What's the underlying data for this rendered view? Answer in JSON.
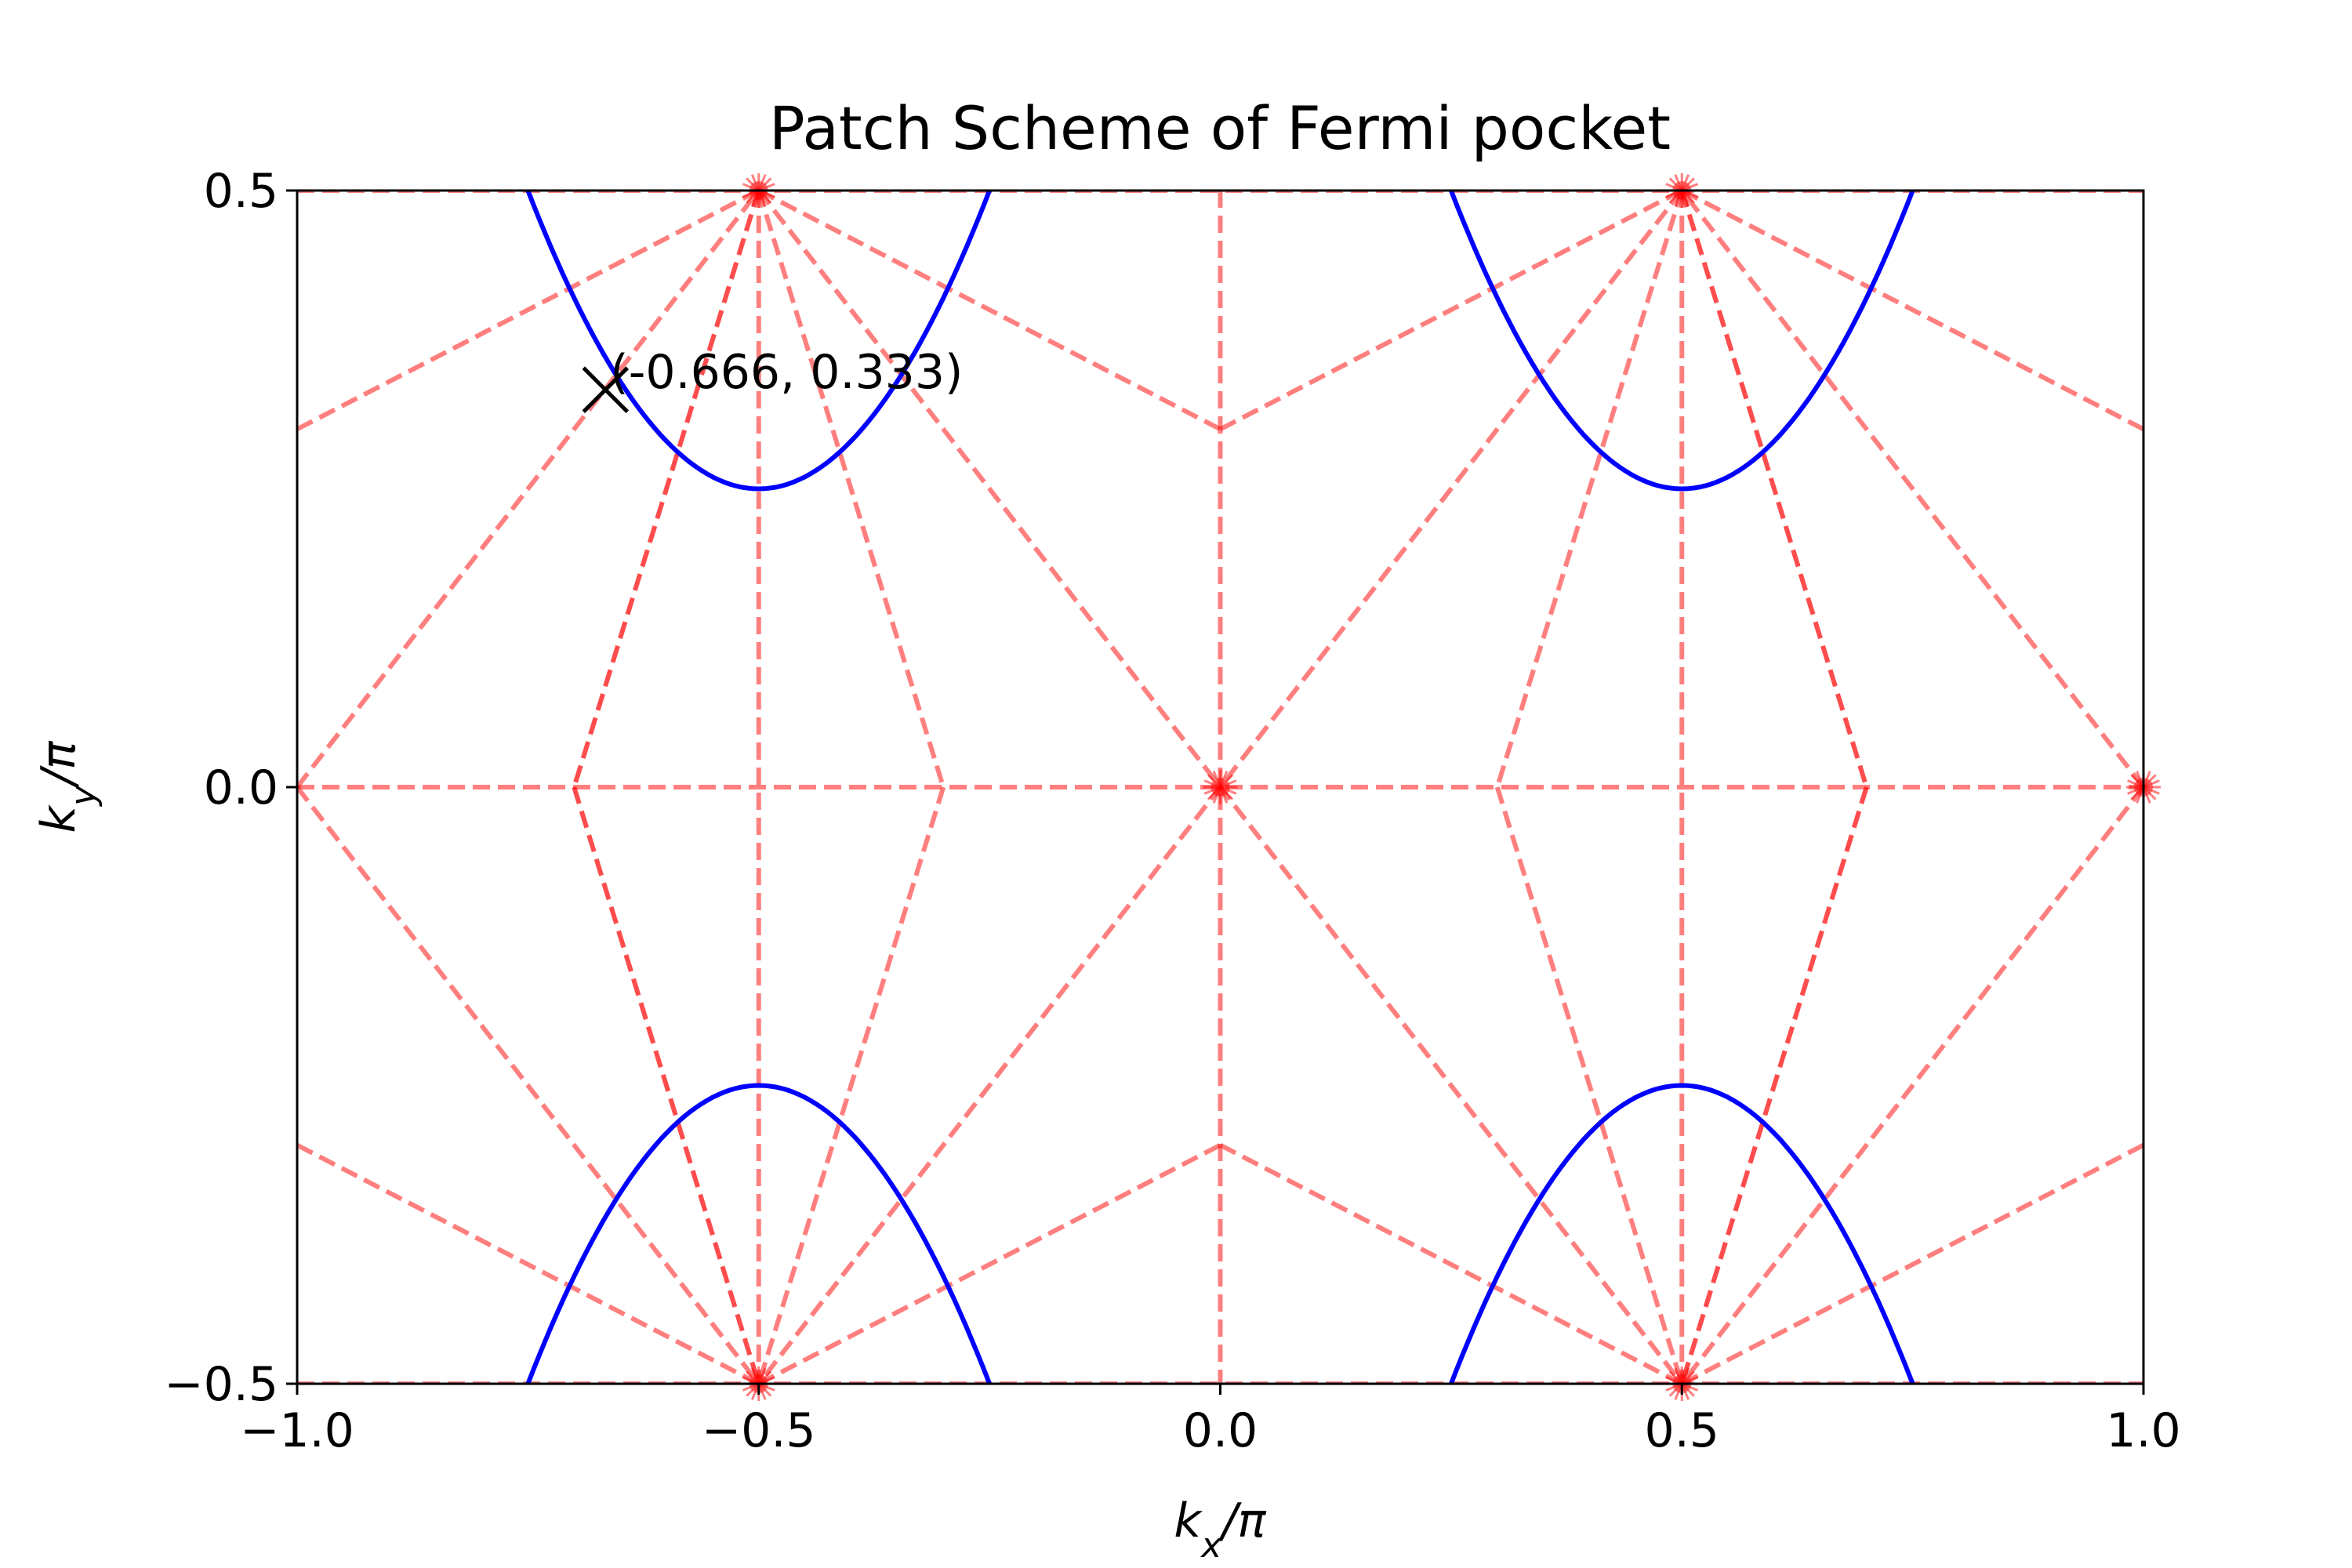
{
  "chart_data": {
    "type": "line",
    "title": "Patch Scheme of Fermi pocket",
    "xlabel": {
      "main": "k",
      "sub": "x",
      "suffix": "/π"
    },
    "ylabel": {
      "main": "k",
      "sub": "y",
      "suffix": "/π"
    },
    "xlim": [
      -1.0,
      1.0
    ],
    "ylim": [
      -0.5,
      0.5
    ],
    "xticks": [
      -1.0,
      -0.5,
      0.0,
      0.5,
      1.0
    ],
    "xtick_labels": [
      "−1.0",
      "−0.5",
      "0.0",
      "0.5",
      "1.0"
    ],
    "yticks": [
      -0.5,
      0.0,
      0.5
    ],
    "ytick_labels": [
      "−0.5",
      "0.0",
      "0.5"
    ],
    "grid": false,
    "colors": {
      "pocket": "#0000ff",
      "patch_line": "#ff0000",
      "marker": "#000000",
      "axes": "#000000"
    },
    "pocket_contours": [
      {
        "center": [
          -0.5,
          0.5
        ],
        "x_half_width": 0.25,
        "y_depth": 0.25
      },
      {
        "center": [
          0.5,
          0.5
        ],
        "x_half_width": 0.25,
        "y_depth": 0.25
      },
      {
        "center": [
          -0.5,
          -0.5
        ],
        "x_half_width": 0.25,
        "y_depth": 0.25
      },
      {
        "center": [
          0.5,
          -0.5
        ],
        "x_half_width": 0.25,
        "y_depth": 0.25
      }
    ],
    "patch_lines": [
      [
        [
          -1.0,
          0.5
        ],
        [
          1.0,
          0.5
        ]
      ],
      [
        [
          -1.0,
          -0.5
        ],
        [
          1.0,
          -0.5
        ]
      ],
      [
        [
          -1.0,
          0.0
        ],
        [
          1.0,
          0.0
        ]
      ],
      [
        [
          -0.5,
          0.5
        ],
        [
          -0.5,
          -0.5
        ]
      ],
      [
        [
          0.0,
          0.5
        ],
        [
          0.0,
          -0.5
        ]
      ],
      [
        [
          0.5,
          0.5
        ],
        [
          0.5,
          -0.5
        ]
      ],
      [
        [
          -1.0,
          0.3
        ],
        [
          -0.5,
          0.5
        ]
      ],
      [
        [
          -1.0,
          -0.3
        ],
        [
          -0.5,
          -0.5
        ]
      ],
      [
        [
          1.0,
          0.3
        ],
        [
          0.5,
          0.5
        ]
      ],
      [
        [
          1.0,
          -0.3
        ],
        [
          0.5,
          -0.5
        ]
      ],
      [
        [
          -0.5,
          0.5
        ],
        [
          0.0,
          0.3
        ]
      ],
      [
        [
          0.0,
          0.3
        ],
        [
          0.5,
          0.5
        ]
      ],
      [
        [
          -0.5,
          -0.5
        ],
        [
          0.0,
          -0.3
        ]
      ],
      [
        [
          0.0,
          -0.3
        ],
        [
          0.5,
          -0.5
        ]
      ],
      [
        [
          -1.0,
          0.0
        ],
        [
          -0.5,
          0.5
        ]
      ],
      [
        [
          -1.0,
          0.0
        ],
        [
          -0.5,
          -0.5
        ]
      ],
      [
        [
          1.0,
          0.0
        ],
        [
          0.5,
          0.5
        ]
      ],
      [
        [
          1.0,
          0.0
        ],
        [
          0.5,
          -0.5
        ]
      ],
      [
        [
          -0.5,
          0.5
        ],
        [
          0.5,
          -0.5
        ]
      ],
      [
        [
          0.5,
          0.5
        ],
        [
          -0.5,
          -0.5
        ]
      ],
      [
        [
          -0.5,
          0.5
        ],
        [
          -0.3,
          0.0
        ]
      ],
      [
        [
          -0.3,
          0.0
        ],
        [
          -0.5,
          -0.5
        ]
      ],
      [
        [
          0.5,
          0.5
        ],
        [
          0.3,
          0.0
        ]
      ],
      [
        [
          0.3,
          0.0
        ],
        [
          0.5,
          -0.5
        ]
      ]
    ],
    "strong_patch_lines": [
      [
        [
          -0.5,
          0.5
        ],
        [
          -0.7,
          0.0
        ]
      ],
      [
        [
          -0.7,
          0.0
        ],
        [
          -0.5,
          -0.5
        ]
      ],
      [
        [
          0.5,
          0.5
        ],
        [
          0.7,
          0.0
        ]
      ],
      [
        [
          0.7,
          0.0
        ],
        [
          0.5,
          -0.5
        ]
      ]
    ],
    "vertex_points": [
      [
        -0.5,
        0.5
      ],
      [
        0.5,
        0.5
      ],
      [
        -0.5,
        -0.5
      ],
      [
        0.5,
        -0.5
      ],
      [
        0.0,
        0.0
      ],
      [
        1.0,
        0.0
      ]
    ],
    "marked_point": {
      "x": -0.666,
      "y": 0.333,
      "label": "(-0.666, 0.333)"
    }
  }
}
